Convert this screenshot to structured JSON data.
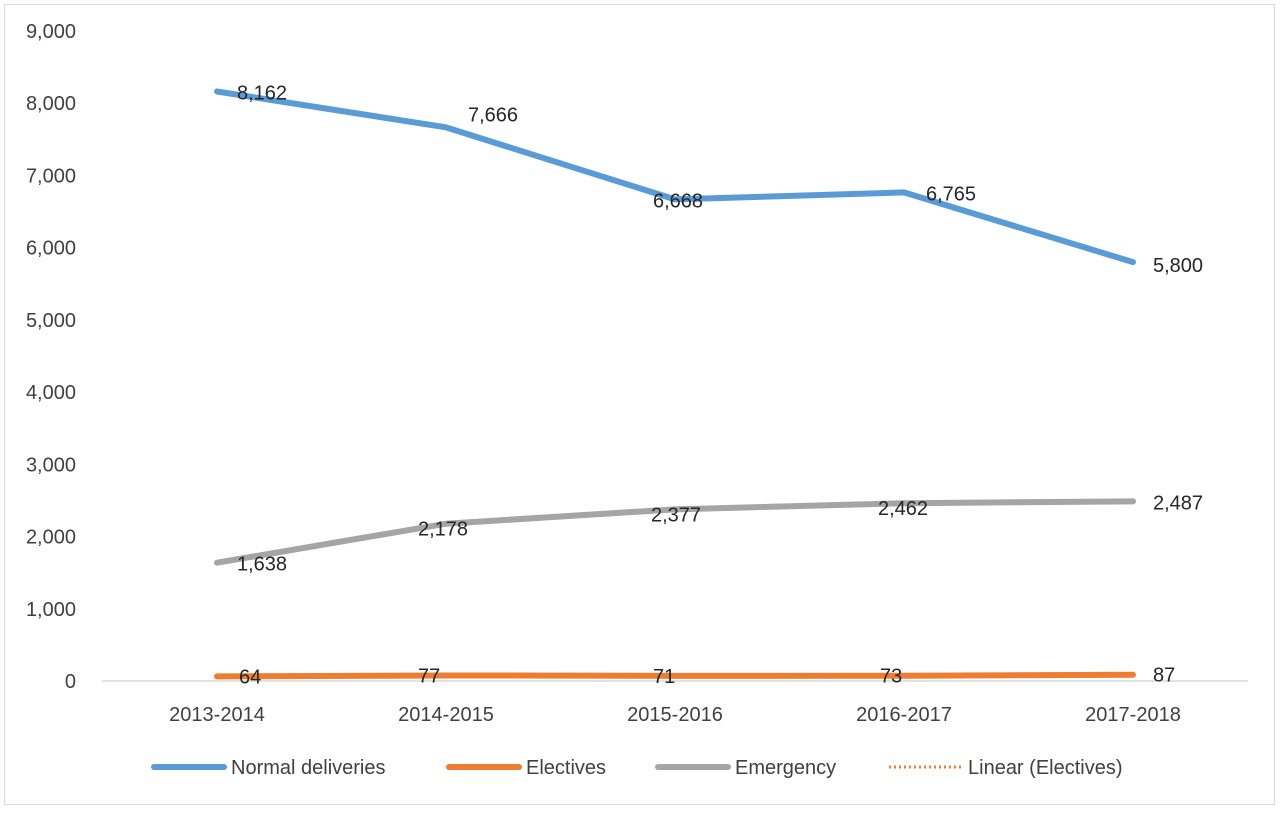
{
  "chart_data": {
    "type": "line",
    "categories": [
      "2013-2014",
      "2014-2015",
      "2015-2016",
      "2016-2017",
      "2017-2018"
    ],
    "ylim": [
      0,
      9000
    ],
    "yticks": [
      0,
      1000,
      2000,
      3000,
      4000,
      5000,
      6000,
      7000,
      8000,
      9000
    ],
    "ytick_labels": [
      "0",
      "1,000",
      "2,000",
      "3,000",
      "4,000",
      "5,000",
      "6,000",
      "7,000",
      "8,000",
      "9,000"
    ],
    "grid": false,
    "legend_position": "bottom",
    "series": [
      {
        "name": "Normal deliveries",
        "color": "#5b9bd5",
        "style": "solid",
        "values": [
          8162,
          7666,
          6668,
          6765,
          5800
        ],
        "labels": [
          "8,162",
          "7,666",
          "6,668",
          "6,765",
          "5,800"
        ]
      },
      {
        "name": "Electives",
        "color": "#ed7d31",
        "style": "solid",
        "values": [
          64,
          77,
          71,
          73,
          87
        ],
        "labels": [
          "64",
          "77",
          "71",
          "73",
          "87"
        ]
      },
      {
        "name": "Emergency",
        "color": "#a5a5a5",
        "style": "solid",
        "values": [
          1638,
          2178,
          2377,
          2462,
          2487
        ],
        "labels": [
          "1,638",
          "2,178",
          "2,377",
          "2,462",
          "2,487"
        ]
      },
      {
        "name": "Linear (Electives)",
        "color": "#ed7d31",
        "style": "dotted",
        "trendline_of": "Electives"
      }
    ]
  }
}
